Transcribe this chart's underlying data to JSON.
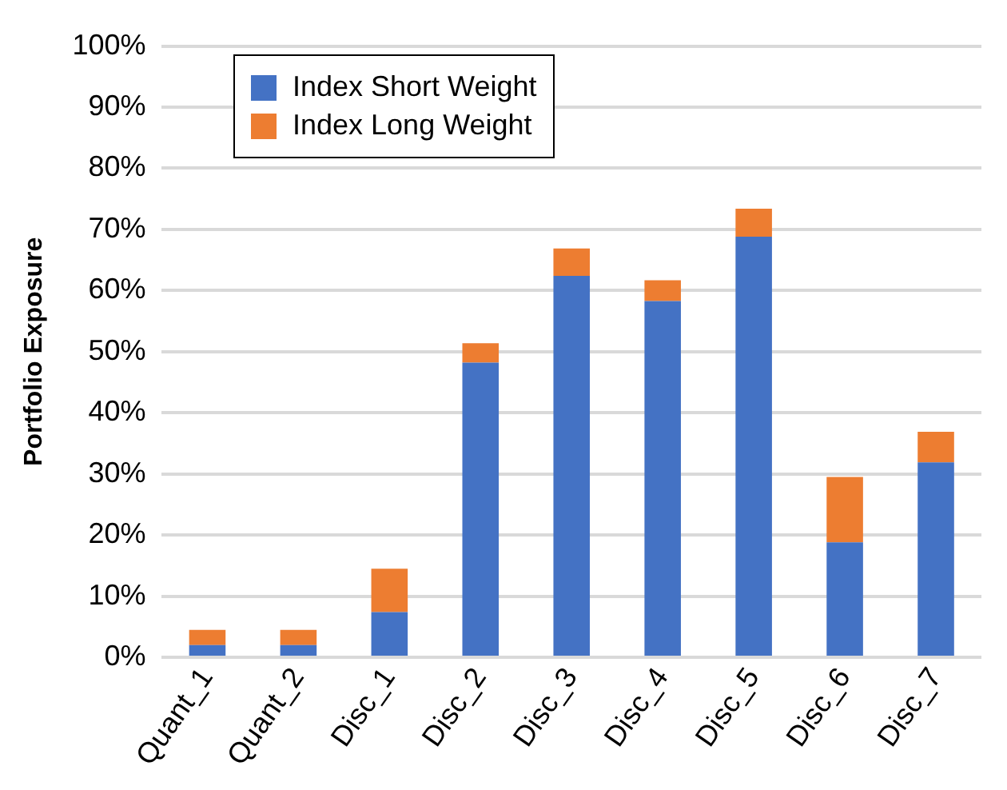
{
  "chart_data": {
    "type": "bar",
    "stacked": true,
    "ylabel": "Portfolio Exposure",
    "categories": [
      "Quant_1",
      "Quant_2",
      "Disc_1",
      "Disc_2",
      "Disc_3",
      "Disc_4",
      "Disc_5",
      "Disc_6",
      "Disc_7"
    ],
    "series": [
      {
        "name": "Index Short Weight",
        "color": "#4472c4",
        "values": [
          2.0,
          2.0,
          7.4,
          48.2,
          62.4,
          58.3,
          68.8,
          18.8,
          31.9
        ]
      },
      {
        "name": "Index Long Weight",
        "color": "#ed7d31",
        "values": [
          2.5,
          2.5,
          7.1,
          3.2,
          4.5,
          3.4,
          4.6,
          10.7,
          5.0
        ]
      }
    ],
    "ylim": [
      0,
      100
    ],
    "yticks": [
      {
        "value": 0,
        "label": "0%"
      },
      {
        "value": 10,
        "label": "10%"
      },
      {
        "value": 20,
        "label": "20%"
      },
      {
        "value": 30,
        "label": "30%"
      },
      {
        "value": 40,
        "label": "40%"
      },
      {
        "value": 50,
        "label": "50%"
      },
      {
        "value": 60,
        "label": "60%"
      },
      {
        "value": 70,
        "label": "70%"
      },
      {
        "value": 80,
        "label": "80%"
      },
      {
        "value": 90,
        "label": "90%"
      },
      {
        "value": 100,
        "label": "100%"
      }
    ],
    "grid": "y",
    "legend": "top left"
  }
}
